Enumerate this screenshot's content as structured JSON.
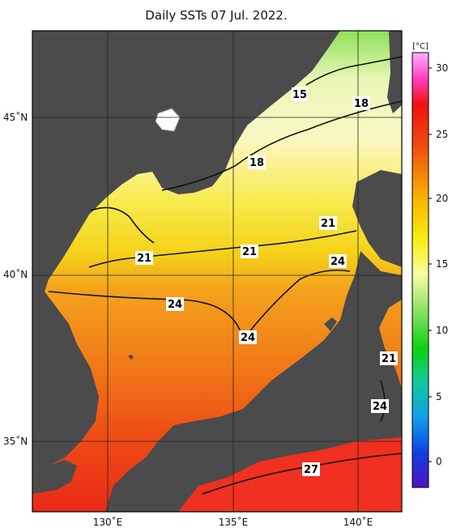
{
  "title": "Daily SSTs 07 Jul. 2022.",
  "colorbar": {
    "unit": "[°C]",
    "ticks": [
      "30",
      "25",
      "20",
      "15",
      "10",
      "5",
      "0"
    ]
  },
  "axes": {
    "lat_labels": [
      "45˚N",
      "40˚N",
      "35˚N"
    ],
    "lon_labels": [
      "130˚E",
      "135˚E",
      "140˚E"
    ]
  },
  "contour_labels": [
    "15",
    "18",
    "18",
    "21",
    "21",
    "21",
    "24",
    "24",
    "24",
    "21",
    "24",
    "27"
  ],
  "colors": {
    "land": "#4b4b4b",
    "frame": "#000000"
  }
}
